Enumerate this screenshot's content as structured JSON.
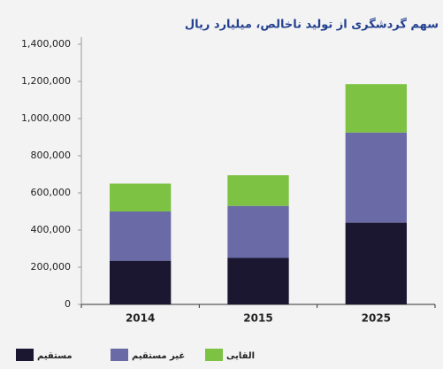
{
  "chart_data": {
    "type": "stacked-bar",
    "title": "سهم گردشگری از تولید ناخالص، میلیارد ریال",
    "categories": [
      "2014",
      "2015",
      "2025"
    ],
    "series": [
      {
        "name": "مستقیم",
        "color": "#1b1730",
        "values": [
          235000,
          250000,
          440000
        ]
      },
      {
        "name": "غیر مستقیم",
        "color": "#6a6aa6",
        "values": [
          265000,
          280000,
          485000
        ]
      },
      {
        "name": "القایی",
        "color": "#7dc242",
        "values": [
          150000,
          165000,
          260000
        ]
      }
    ],
    "ylim": [
      0,
      1400000
    ],
    "yticks": [
      0,
      {
        "value": 200000,
        "label": "200,000"
      },
      {
        "value": 400000,
        "label": "400,000"
      },
      {
        "value": 600000,
        "label": "600,000"
      },
      {
        "value": 800000,
        "label": "800,000"
      },
      {
        "value": 1000000,
        "label": "1,000,000"
      },
      {
        "value": 1200000,
        "label": "1,200,000"
      },
      {
        "value": 1400000,
        "label": "1,400,000"
      }
    ],
    "legend": "bottom"
  }
}
